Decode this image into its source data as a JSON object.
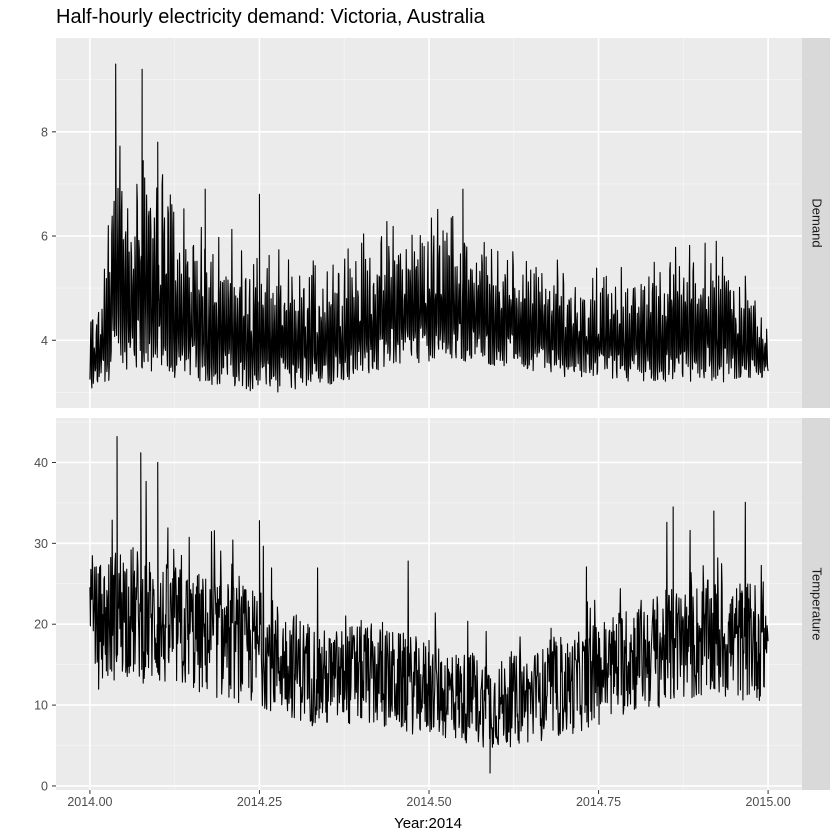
{
  "chart_data": {
    "type": "line",
    "title": "Half-hourly electricity demand: Victoria, Australia",
    "xlabel": "Year:2014",
    "xlim": [
      2013.95,
      2015.05
    ],
    "x_ticks": [
      2014.0,
      2014.25,
      2014.5,
      2014.75,
      2015.0
    ],
    "x_tick_labels": [
      "2014.00",
      "2014.25",
      "2014.50",
      "2014.75",
      "2015.00"
    ],
    "grid": true,
    "facets": [
      {
        "name": "Demand",
        "ylim": [
          2.7,
          9.8
        ],
        "y_ticks": [
          4,
          6,
          8
        ],
        "y_tick_labels": [
          "4",
          "6",
          "8"
        ],
        "series": [
          {
            "name": "Demand",
            "envelope_x": [
              2014.0,
              2014.02,
              2014.035,
              2014.045,
              2014.06,
              2014.075,
              2014.1,
              2014.15,
              2014.2,
              2014.25,
              2014.3,
              2014.35,
              2014.4,
              2014.45,
              2014.5,
              2014.55,
              2014.6,
              2014.65,
              2014.7,
              2014.75,
              2014.8,
              2014.85,
              2014.9,
              2014.95,
              2015.0
            ],
            "envelope_low": [
              3.0,
              3.1,
              3.3,
              3.5,
              3.4,
              3.3,
              3.2,
              3.2,
              3.1,
              3.0,
              3.0,
              3.1,
              3.3,
              3.5,
              3.6,
              3.6,
              3.5,
              3.4,
              3.3,
              3.3,
              3.2,
              3.2,
              3.2,
              3.2,
              3.3
            ],
            "envelope_high": [
              4.5,
              5.6,
              9.3,
              8.2,
              6.8,
              9.2,
              7.8,
              6.6,
              6.3,
              6.0,
              5.8,
              6.0,
              6.3,
              6.6,
              6.8,
              6.6,
              6.3,
              5.9,
              5.6,
              5.6,
              5.7,
              5.9,
              6.2,
              6.1,
              4.4
            ],
            "peaks": [
              [
                2014.038,
                9.3
              ],
              [
                2014.077,
                9.2
              ],
              [
                2014.1,
                7.8
              ],
              [
                2014.17,
                6.9
              ],
              [
                2014.25,
                6.8
              ],
              [
                2014.55,
                6.9
              ]
            ]
          }
        ]
      },
      {
        "name": "Temperature",
        "ylim": [
          -0.5,
          45.5
        ],
        "y_ticks": [
          0,
          10,
          20,
          30,
          40
        ],
        "y_tick_labels": [
          "0",
          "10",
          "20",
          "30",
          "40"
        ],
        "series": [
          {
            "name": "Temperature",
            "mean_x": [
              2014.0,
              2014.05,
              2014.1,
              2014.15,
              2014.2,
              2014.25,
              2014.3,
              2014.35,
              2014.4,
              2014.45,
              2014.5,
              2014.55,
              2014.6,
              2014.65,
              2014.7,
              2014.75,
              2014.8,
              2014.85,
              2014.9,
              2014.95,
              2015.0
            ],
            "mean_y": [
              19,
              22,
              20,
              19,
              18,
              17,
              15,
              13,
              14,
              13,
              12,
              11,
              10,
              11,
              12,
              14,
              16,
              17,
              18,
              18,
              18
            ],
            "peaks": [
              [
                2014.04,
                43.2
              ],
              [
                2014.075,
                41.2
              ],
              [
                2014.1,
                40.0
              ],
              [
                2014.25,
                32.8
              ],
              [
                2014.5,
                18.0
              ],
              [
                2014.59,
                1.6
              ],
              [
                2014.86,
                34.5
              ],
              [
                2014.92,
                34.0
              ]
            ]
          }
        ]
      }
    ]
  }
}
